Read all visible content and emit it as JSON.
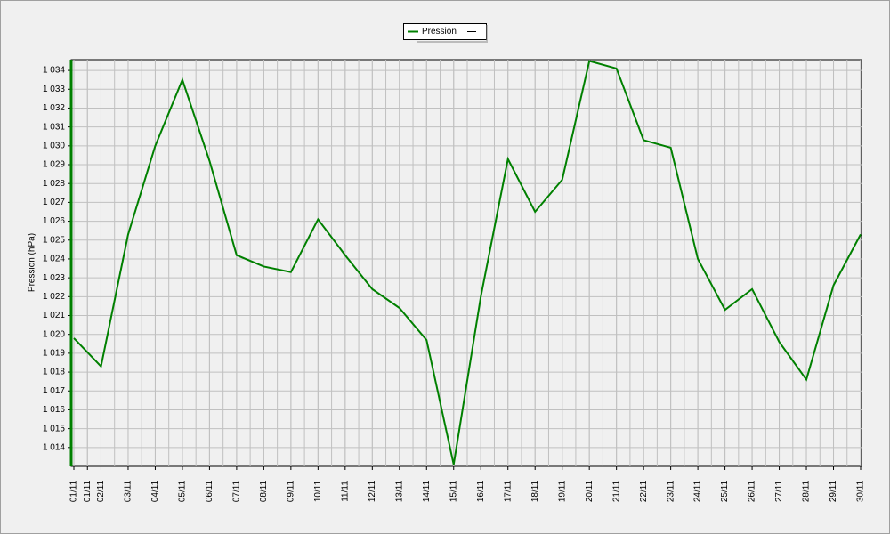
{
  "chart_data": {
    "type": "line",
    "y_label": "Pression (hPa)",
    "x": [
      1,
      2,
      3,
      4,
      5,
      6,
      7,
      8,
      9,
      10,
      11,
      12,
      13,
      14,
      15,
      16,
      17,
      18,
      19,
      20,
      21,
      22,
      23,
      24,
      25,
      26,
      27,
      28,
      29,
      30
    ],
    "series": [
      {
        "name": "Pression",
        "color": "#008000",
        "values": [
          1019.8,
          1018.3,
          1025.3,
          1030.0,
          1033.5,
          1029.2,
          1024.2,
          1023.6,
          1023.3,
          1026.1,
          1024.2,
          1022.4,
          1021.4,
          1019.7,
          1013.1,
          1022.0,
          1029.3,
          1026.5,
          1028.2,
          1034.5,
          1034.1,
          1030.3,
          1029.9,
          1024.0,
          1021.3,
          1022.4,
          1019.6,
          1017.6,
          1022.6,
          1025.3
        ]
      }
    ],
    "xlim": [
      1,
      30
    ],
    "xticks": [
      {
        "value": 1,
        "label": "01/11"
      },
      {
        "value": 1.5,
        "label": "01/11"
      },
      {
        "value": 2,
        "label": "02/11"
      },
      {
        "value": 3,
        "label": "03/11"
      },
      {
        "value": 4,
        "label": "04/11"
      },
      {
        "value": 5,
        "label": "05/11"
      },
      {
        "value": 6,
        "label": "06/11"
      },
      {
        "value": 7,
        "label": "07/11"
      },
      {
        "value": 8,
        "label": "08/11"
      },
      {
        "value": 9,
        "label": "09/11"
      },
      {
        "value": 10,
        "label": "10/11"
      },
      {
        "value": 11,
        "label": "11/11"
      },
      {
        "value": 12,
        "label": "12/11"
      },
      {
        "value": 13,
        "label": "13/11"
      },
      {
        "value": 14,
        "label": "14/11"
      },
      {
        "value": 15,
        "label": "15/11"
      },
      {
        "value": 16,
        "label": "16/11"
      },
      {
        "value": 17,
        "label": "17/11"
      },
      {
        "value": 18,
        "label": "18/11"
      },
      {
        "value": 19,
        "label": "19/11"
      },
      {
        "value": 20,
        "label": "20/11"
      },
      {
        "value": 21,
        "label": "21/11"
      },
      {
        "value": 22,
        "label": "22/11"
      },
      {
        "value": 23,
        "label": "23/11"
      },
      {
        "value": 24,
        "label": "24/11"
      },
      {
        "value": 25,
        "label": "25/11"
      },
      {
        "value": 26,
        "label": "26/11"
      },
      {
        "value": 27,
        "label": "27/11"
      },
      {
        "value": 28,
        "label": "28/11"
      },
      {
        "value": 29,
        "label": "29/11"
      },
      {
        "value": 30,
        "label": "30/11"
      }
    ],
    "ylim": [
      1013,
      1034.57
    ],
    "yticks": [
      {
        "value": 1014,
        "label": "1 014"
      },
      {
        "value": 1015,
        "label": "1 015"
      },
      {
        "value": 1016,
        "label": "1 016"
      },
      {
        "value": 1017,
        "label": "1 017"
      },
      {
        "value": 1018,
        "label": "1 018"
      },
      {
        "value": 1019,
        "label": "1 019"
      },
      {
        "value": 1020,
        "label": "1 020"
      },
      {
        "value": 1021,
        "label": "1 021"
      },
      {
        "value": 1022,
        "label": "1 022"
      },
      {
        "value": 1023,
        "label": "1 023"
      },
      {
        "value": 1024,
        "label": "1 024"
      },
      {
        "value": 1025,
        "label": "1 025"
      },
      {
        "value": 1026,
        "label": "1 026"
      },
      {
        "value": 1027,
        "label": "1 027"
      },
      {
        "value": 1028,
        "label": "1 028"
      },
      {
        "value": 1029,
        "label": "1 029"
      },
      {
        "value": 1030,
        "label": "1 030"
      },
      {
        "value": 1031,
        "label": "1 031"
      },
      {
        "value": 1032,
        "label": "1 032"
      },
      {
        "value": 1033,
        "label": "1 033"
      },
      {
        "value": 1034,
        "label": "1 034"
      }
    ],
    "grid": true,
    "legend": "top"
  }
}
